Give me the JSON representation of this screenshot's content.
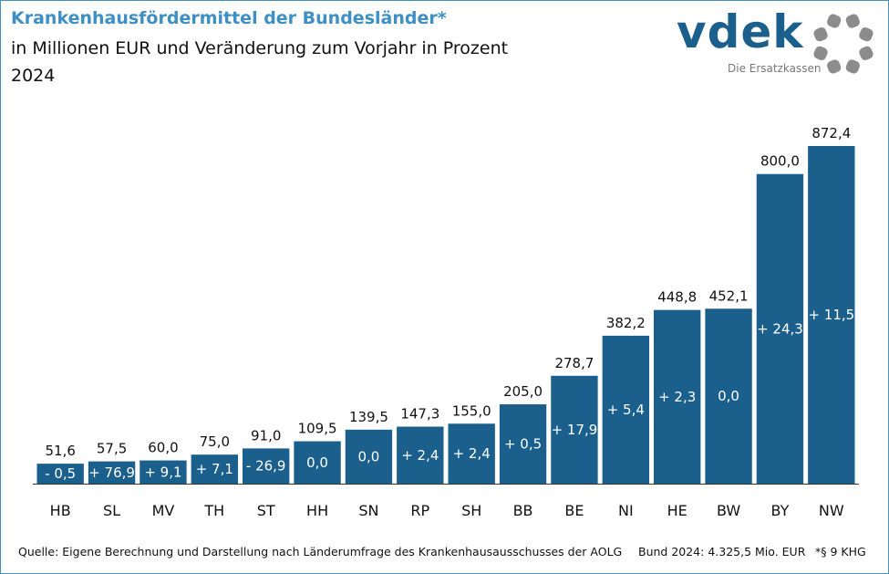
{
  "header": {
    "title": "Krankenhausfördermittel der Bundesländer*",
    "subtitle": "in Millionen EUR und Veränderung zum Vorjahr in Prozent",
    "year": "2024"
  },
  "logo": {
    "word": "vdek",
    "tagline": "Die Ersatzkassen",
    "icon": "circle-dots-logo-icon"
  },
  "colors": {
    "bar": "#1b5f8c",
    "title": "#3d8fc4",
    "frame": "#4a8fb8",
    "logo_dots": "#8c8c8c"
  },
  "chart_data": {
    "type": "bar",
    "categories": [
      "HB",
      "SL",
      "MV",
      "TH",
      "ST",
      "HH",
      "SN",
      "RP",
      "SH",
      "BB",
      "BE",
      "NI",
      "HE",
      "BW",
      "BY",
      "NW"
    ],
    "values": [
      51.6,
      57.5,
      60.0,
      75.0,
      91.0,
      109.5,
      139.5,
      147.3,
      155.0,
      205.0,
      278.7,
      382.2,
      448.8,
      452.1,
      800.0,
      872.4
    ],
    "value_labels": [
      "51,6",
      "57,5",
      "60,0",
      "75,0",
      "91,0",
      "109,5",
      "139,5",
      "147,3",
      "155,0",
      "205,0",
      "278,7",
      "382,2",
      "448,8",
      "452,1",
      "800,0",
      "872,4"
    ],
    "change_labels": [
      "- 0,5",
      "+ 76,9",
      "+ 9,1",
      "+ 7,1",
      "- 26,9",
      "0,0",
      "0,0",
      "+ 2,4",
      "+ 2,4",
      "+ 0,5",
      "+ 17,9",
      "+ 5,4",
      "+ 2,3",
      "0,0",
      "+ 24,3",
      "+ 11,5"
    ],
    "ylim": [
      0,
      872.4
    ],
    "grid": false,
    "legend": "none"
  },
  "footer": {
    "source": "Quelle: Eigene Berechnung und Darstellung nach Länderumfrage des Krankenhausausschusses der AOLG",
    "total": "Bund 2024: 4.325,5 Mio. EUR",
    "note": "*§ 9 KHG"
  }
}
